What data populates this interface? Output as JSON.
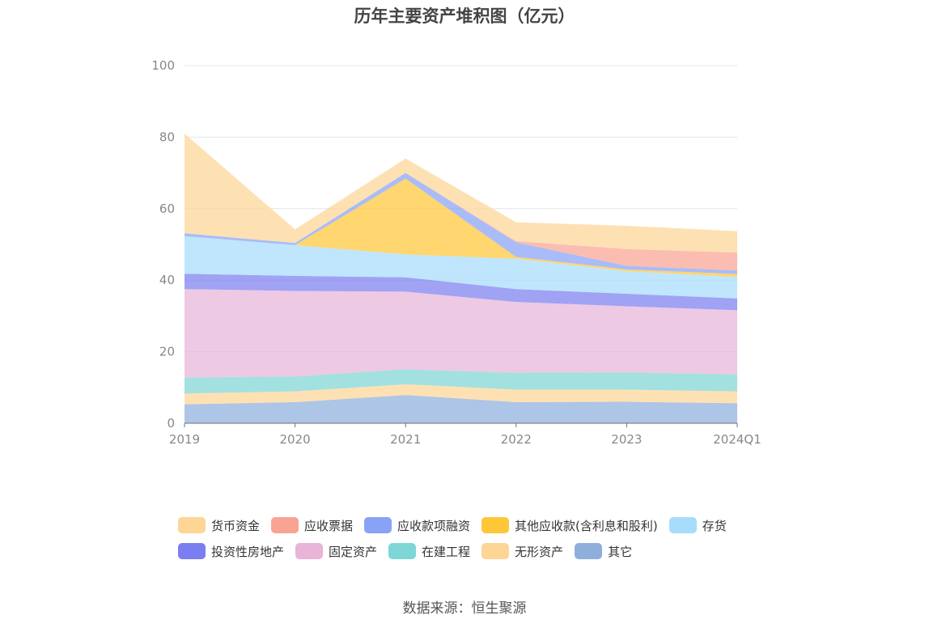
{
  "title": "历年主要资产堆积图（亿元）",
  "source": "数据来源：恒生聚源",
  "chart_data": {
    "type": "area",
    "stacked": true,
    "x": [
      "2019",
      "2020",
      "2021",
      "2022",
      "2023",
      "2024Q1"
    ],
    "ylim": [
      0,
      100
    ],
    "yticks": [
      0,
      20,
      40,
      60,
      80,
      100
    ],
    "grid": true,
    "legend_position": "bottom",
    "series": [
      {
        "name": "其它",
        "color": "#8eaedc",
        "values": [
          5.3,
          5.9,
          7.9,
          5.9,
          6.0,
          5.6
        ]
      },
      {
        "name": "无形资产",
        "color": "#fdd595",
        "values": [
          3.0,
          3.0,
          3.0,
          3.5,
          3.4,
          3.3
        ]
      },
      {
        "name": "在建工程",
        "color": "#7fd6d6",
        "values": [
          4.5,
          4.2,
          4.2,
          4.7,
          4.8,
          4.8
        ]
      },
      {
        "name": "固定资产",
        "color": "#e8b4d8",
        "values": [
          24.7,
          23.9,
          21.7,
          19.8,
          18.5,
          17.9
        ]
      },
      {
        "name": "投资性房地产",
        "color": "#7b7ef0",
        "values": [
          4.3,
          4.2,
          4.0,
          3.6,
          3.5,
          3.3
        ]
      },
      {
        "name": "存货",
        "color": "#a6ddfb",
        "values": [
          10.5,
          8.6,
          6.4,
          8.5,
          6.3,
          6.0
        ]
      },
      {
        "name": "其他应收款(含利息和股利)",
        "color": "#ffc637",
        "values": [
          0.0,
          0.0,
          21.2,
          0.5,
          0.5,
          0.8
        ]
      },
      {
        "name": "应收款项融资",
        "color": "#88a2f5",
        "values": [
          0.8,
          0.6,
          1.6,
          4.1,
          1.0,
          1.0
        ]
      },
      {
        "name": "应收票据",
        "color": "#f9a393",
        "values": [
          0.0,
          0.0,
          0.0,
          0.3,
          4.7,
          5.0
        ]
      },
      {
        "name": "货币资金",
        "color": "#fdd595",
        "values": [
          27.9,
          3.8,
          4.0,
          5.3,
          6.5,
          6.0
        ]
      }
    ]
  },
  "legend": [
    {
      "name": "货币资金",
      "color": "#fdd595"
    },
    {
      "name": "应收票据",
      "color": "#f9a393"
    },
    {
      "name": "应收款项融资",
      "color": "#88a2f5"
    },
    {
      "name": "其他应收款(含利息和股利)",
      "color": "#ffc637"
    },
    {
      "name": "存货",
      "color": "#a6ddfb"
    },
    {
      "name": "投资性房地产",
      "color": "#7b7ef0"
    },
    {
      "name": "固定资产",
      "color": "#e8b4d8"
    },
    {
      "name": "在建工程",
      "color": "#7fd6d6"
    },
    {
      "name": "无形资产",
      "color": "#fdd595"
    },
    {
      "name": "其它",
      "color": "#8eaedc"
    }
  ]
}
